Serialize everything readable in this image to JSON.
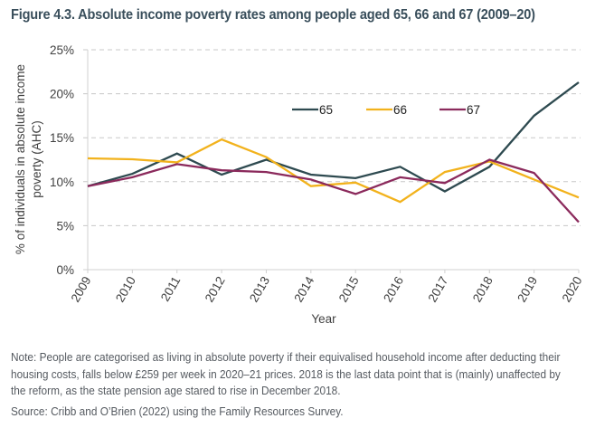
{
  "figure": {
    "title": "Figure 4.3. Absolute income poverty rates among people aged 65, 66 and 67 (2009–20)",
    "note": "Note: People are categorised as living in absolute poverty if their equivalised household income after deducting their housing costs, falls below £259 per week in 2020–21 prices. 2018 is the last data point that is (mainly) unaffected by the reform, as the state pension age stared to rise in December 2018.",
    "source": "Source: Cribb and O’Brien (2022) using the Family Resources Survey."
  },
  "chart_data": {
    "type": "line",
    "title": "Absolute income poverty rates among people aged 65, 66 and 67 (2009–20)",
    "xlabel": "Year",
    "ylabel": "% of individuals in absolute income poverty (AHC)",
    "ylabel_lines": [
      "% of individuals in absolute income",
      "poverty (AHC)"
    ],
    "x": [
      "2009",
      "2010",
      "2011",
      "2012",
      "2013",
      "2014",
      "2015",
      "2016",
      "2017",
      "2018",
      "2019",
      "2020"
    ],
    "ylim": [
      0,
      25
    ],
    "yticks": [
      0,
      5,
      10,
      15,
      20,
      25
    ],
    "ytick_labels": [
      "0%",
      "5%",
      "10%",
      "15%",
      "20%",
      "25%"
    ],
    "grid": "horizontal dashed",
    "legend_position": "top-center",
    "series": [
      {
        "name": "65",
        "color": "#2e4a50",
        "values": [
          9.5,
          10.9,
          13.2,
          10.8,
          12.5,
          10.8,
          10.4,
          11.7,
          8.9,
          11.7,
          17.5,
          21.3
        ]
      },
      {
        "name": "66",
        "color": "#f2b21c",
        "values": [
          12.65,
          12.55,
          12.2,
          14.8,
          12.8,
          9.5,
          9.9,
          7.7,
          11.1,
          12.3,
          10.25,
          8.2
        ]
      },
      {
        "name": "67",
        "color": "#8b2a5c",
        "values": [
          9.5,
          10.5,
          12.0,
          11.3,
          11.1,
          10.25,
          8.6,
          10.5,
          9.85,
          12.5,
          11.0,
          5.4
        ]
      }
    ]
  }
}
